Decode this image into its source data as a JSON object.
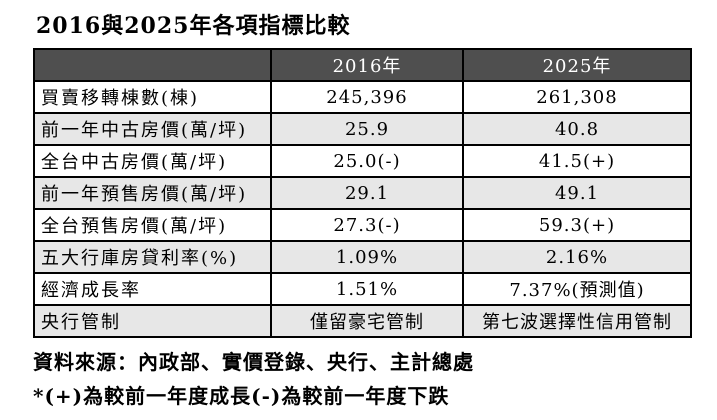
{
  "title": "2016與2025年各項指標比較",
  "chart_data": {
    "type": "table",
    "title": "2016與2025年各項指標比較",
    "categories": [
      "買賣移轉棟數(棟)",
      "前一年中古房價(萬/坪)",
      "全台中古房價(萬/坪)",
      "前一年預售房價(萬/坪)",
      "全台預售房價(萬/坪)",
      "五大行庫房貸利率(%)",
      "經濟成長率",
      "央行管制"
    ],
    "series": [
      {
        "name": "2016年",
        "values": [
          "245,396",
          "25.9",
          "25.0(-)",
          "29.1",
          "27.3(-)",
          "1.09%",
          "1.51%",
          "僅留豪宅管制"
        ]
      },
      {
        "name": "2025年",
        "values": [
          "261,308",
          "40.8",
          "41.5(+)",
          "49.1",
          "59.3(+)",
          "2.16%",
          "7.37%(預測值)",
          "第七波選擇性信用管制"
        ]
      }
    ],
    "notes": [
      "資料來源：內政部、實價登錄、央行、主計總處",
      "*(+)為較前一年度成長(-)為較前一年度下跌"
    ]
  },
  "colors": {
    "header_bg": "#4F4F4F",
    "header_text": "#FFFFFF",
    "row_bg": "#FFFFFF",
    "row_alt_bg": "#E7E7E7",
    "border": "#000000"
  }
}
